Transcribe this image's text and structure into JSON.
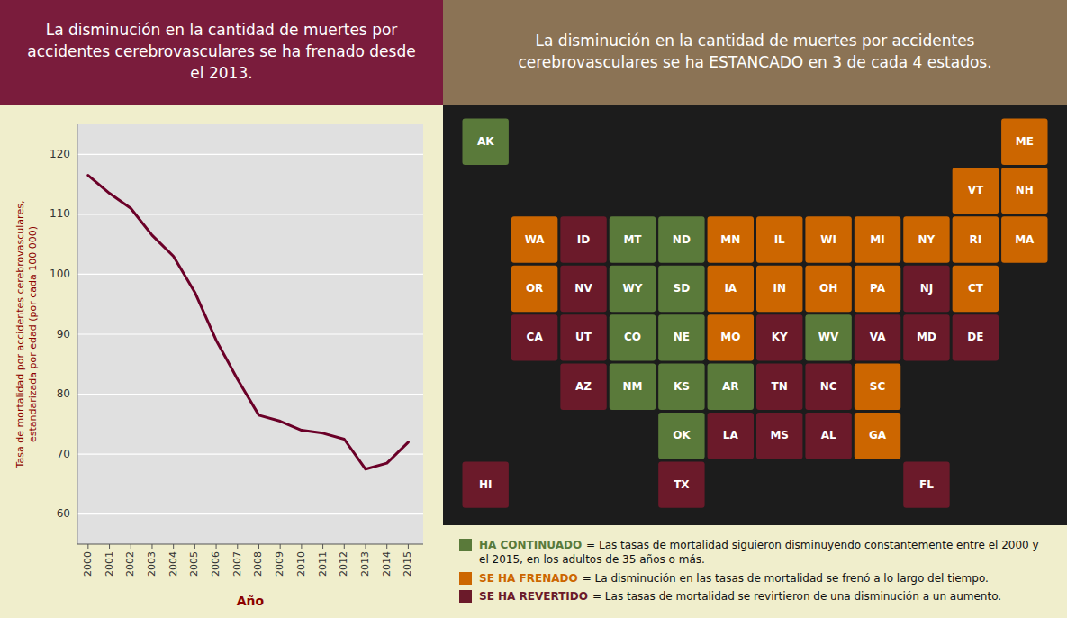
{
  "chart_data": [
    {
      "type": "line",
      "title": "La disminución en la cantidad de muertes por accidentes cerebrovasculares se ha frenado desde el 2013.",
      "x": [
        2000,
        2001,
        2002,
        2003,
        2004,
        2005,
        2006,
        2007,
        2008,
        2009,
        2010,
        2011,
        2012,
        2013,
        2014,
        2015
      ],
      "values": [
        116.5,
        113.5,
        111.0,
        106.5,
        103.0,
        97.0,
        89.0,
        82.5,
        76.5,
        75.5,
        74.0,
        73.5,
        72.5,
        67.5,
        68.5,
        72.0
      ],
      "color": "#6b0028",
      "xlabel": "Año",
      "ylabel": "Tasa de mortalidad por accidentes cerebrovasculares,\nestandarizada por edad (por cada 100 000)",
      "xlim": [
        1999.5,
        2015.7
      ],
      "xticks": [
        2000,
        2001,
        2002,
        2003,
        2004,
        2005,
        2006,
        2007,
        2008,
        2009,
        2010,
        2011,
        2012,
        2013,
        2014,
        2015
      ],
      "ylim": [
        55,
        125
      ],
      "yticks": [
        60,
        70,
        80,
        90,
        100,
        110,
        120
      ],
      "grid": true
    },
    {
      "type": "map",
      "title": "La disminución en la cantidad de muertes por accidentes cerebrovasculares se ha ESTANCADO en 3 de cada 4 estados.",
      "categories": [
        "AK",
        "ME",
        "VT",
        "NH",
        "WA",
        "ID",
        "MT",
        "ND",
        "MN",
        "IL",
        "WI",
        "MI",
        "NY",
        "RI",
        "MA",
        "OR",
        "NV",
        "WY",
        "SD",
        "IA",
        "IN",
        "OH",
        "PA",
        "NJ",
        "CT",
        "CA",
        "UT",
        "CO",
        "NE",
        "MO",
        "KY",
        "WV",
        "VA",
        "MD",
        "DE",
        "AZ",
        "NM",
        "KS",
        "AR",
        "TN",
        "NC",
        "SC",
        "OK",
        "LA",
        "MS",
        "AL",
        "GA",
        "HI",
        "TX",
        "FL"
      ],
      "colors": [
        "#5a7a3a",
        "#cc6600",
        "#cc6600",
        "#cc6600",
        "#cc6600",
        "#6b1a2a",
        "#5a7a3a",
        "#5a7a3a",
        "#cc6600",
        "#cc6600",
        "#cc6600",
        "#cc6600",
        "#cc6600",
        "#cc6600",
        "#cc6600",
        "#cc6600",
        "#6b1a2a",
        "#5a7a3a",
        "#5a7a3a",
        "#cc6600",
        "#cc6600",
        "#cc6600",
        "#cc6600",
        "#6b1a2a",
        "#cc6600",
        "#6b1a2a",
        "#6b1a2a",
        "#5a7a3a",
        "#5a7a3a",
        "#cc6600",
        "#6b1a2a",
        "#5a7a3a",
        "#6b1a2a",
        "#6b1a2a",
        "#6b1a2a",
        "#6b1a2a",
        "#5a7a3a",
        "#5a7a3a",
        "#5a7a3a",
        "#6b1a2a",
        "#6b1a2a",
        "#cc6600",
        "#5a7a3a",
        "#6b1a2a",
        "#6b1a2a",
        "#6b1a2a",
        "#cc6600",
        "#6b1a2a",
        "#6b1a2a",
        "#6b1a2a"
      ],
      "series": [
        {
          "name": "HA CONTINUADO",
          "color": "#5a7a3a",
          "description": "= Las tasas de mortalidad siguieron disminuyendo constantemente entre el 2000 y el 2015, en los adultos de 35 años o más."
        },
        {
          "name": "SE HA FRENADO",
          "color": "#cc6600",
          "description": "= La disminución en las tasas de mortalidad se frenó a lo largo del tiempo."
        },
        {
          "name": "SE HA REVERTIDO",
          "color": "#6b1a2a",
          "description": "= Las tasas de mortalidad se revirtieron de una disminución a un aumento."
        }
      ],
      "legend": "bottom"
    }
  ]
}
